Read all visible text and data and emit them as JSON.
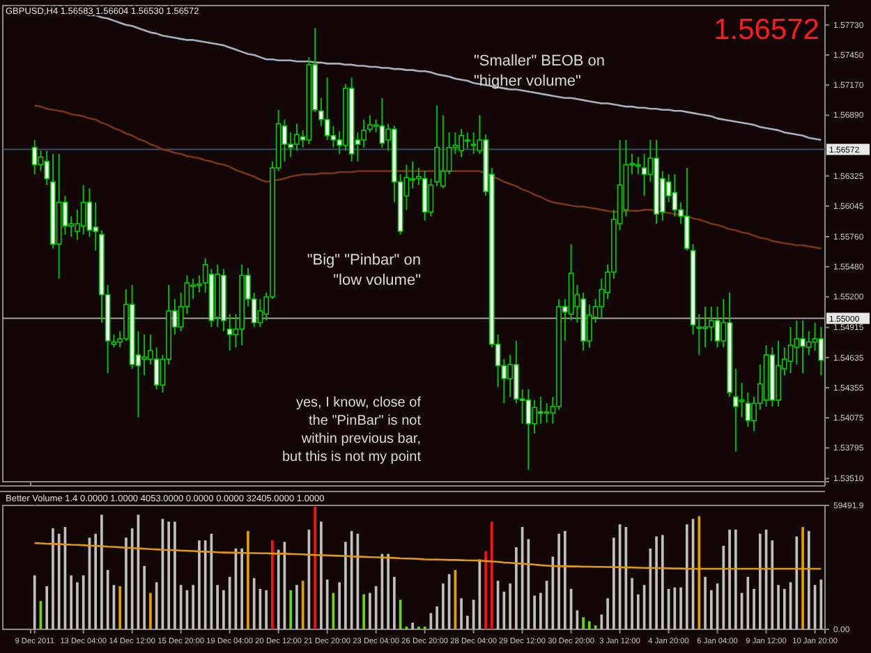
{
  "chart_data": [
    {
      "type": "candlestick",
      "title": "GBPUSD,H4 1.56583 1.56604 1.56530 1.56572",
      "ohlc": [
        [
          1.5659,
          1.5666,
          1.5634,
          1.5643
        ],
        [
          1.5643,
          1.5656,
          1.5637,
          1.565
        ],
        [
          1.5646,
          1.5656,
          1.5624,
          1.563
        ],
        [
          1.5627,
          1.5653,
          1.5565,
          1.5569
        ],
        [
          1.5569,
          1.5653,
          1.5537,
          1.5608
        ],
        [
          1.5608,
          1.5614,
          1.5578,
          1.5586
        ],
        [
          1.5586,
          1.5595,
          1.5576,
          1.5588
        ],
        [
          1.5581,
          1.5601,
          1.5573,
          1.5588
        ],
        [
          1.5586,
          1.5624,
          1.5578,
          1.5608
        ],
        [
          1.5608,
          1.5621,
          1.5576,
          1.5582
        ],
        [
          1.5585,
          1.5608,
          1.5563,
          1.5581
        ],
        [
          1.5578,
          1.5582,
          1.5496,
          1.5522
        ],
        [
          1.5522,
          1.5531,
          1.5449,
          1.5479
        ],
        [
          1.5476,
          1.5485,
          1.5473,
          1.5478
        ],
        [
          1.5478,
          1.5488,
          1.5473,
          1.5481
        ],
        [
          1.5481,
          1.5527,
          1.5479,
          1.5513
        ],
        [
          1.5513,
          1.5531,
          1.5453,
          1.5457
        ],
        [
          1.5466,
          1.5488,
          1.5408,
          1.5456
        ],
        [
          1.5462,
          1.5485,
          1.5447,
          1.5464
        ],
        [
          1.5462,
          1.5485,
          1.5457,
          1.547
        ],
        [
          1.5462,
          1.5473,
          1.5434,
          1.5438
        ],
        [
          1.5438,
          1.5466,
          1.5431,
          1.5462
        ],
        [
          1.5462,
          1.5531,
          1.5457,
          1.5507
        ],
        [
          1.5507,
          1.5518,
          1.5485,
          1.5492
        ],
        [
          1.5492,
          1.5524,
          1.5488,
          1.5511
        ],
        [
          1.5511,
          1.554,
          1.5504,
          1.5533
        ],
        [
          1.5531,
          1.5537,
          1.5518,
          1.5531
        ],
        [
          1.5531,
          1.554,
          1.5524,
          1.5532
        ],
        [
          1.5533,
          1.5556,
          1.5524,
          1.555
        ],
        [
          1.5541,
          1.5546,
          1.5492,
          1.5498
        ],
        [
          1.5501,
          1.555,
          1.5492,
          1.5541
        ],
        [
          1.554,
          1.5546,
          1.5488,
          1.5498
        ],
        [
          1.549,
          1.5504,
          1.547,
          1.5485
        ],
        [
          1.5485,
          1.5504,
          1.5473,
          1.549
        ],
        [
          1.549,
          1.555,
          1.5475,
          1.554
        ],
        [
          1.554,
          1.5547,
          1.5511,
          1.5518
        ],
        [
          1.5518,
          1.5524,
          1.5492,
          1.5496
        ],
        [
          1.5496,
          1.5518,
          1.5492,
          1.5507
        ],
        [
          1.5504,
          1.5524,
          1.5498,
          1.552
        ],
        [
          1.552,
          1.5646,
          1.5518,
          1.564
        ],
        [
          1.564,
          1.5694,
          1.5637,
          1.5681
        ],
        [
          1.5679,
          1.5685,
          1.5646,
          1.5662
        ],
        [
          1.5662,
          1.5673,
          1.565,
          1.5659
        ],
        [
          1.5662,
          1.5681,
          1.5656,
          1.5671
        ],
        [
          1.5669,
          1.5675,
          1.5659,
          1.5666
        ],
        [
          1.5666,
          1.5743,
          1.5662,
          1.5736
        ],
        [
          1.5736,
          1.577,
          1.5692,
          1.5694
        ],
        [
          1.5693,
          1.5705,
          1.5679,
          1.5685
        ],
        [
          1.5685,
          1.5724,
          1.5666,
          1.567
        ],
        [
          1.567,
          1.5679,
          1.5659,
          1.5666
        ],
        [
          1.5666,
          1.5674,
          1.5653,
          1.5661
        ],
        [
          1.5661,
          1.5718,
          1.5656,
          1.5714
        ],
        [
          1.5714,
          1.5724,
          1.5646,
          1.5653
        ],
        [
          1.5666,
          1.5673,
          1.5646,
          1.5662
        ],
        [
          1.5666,
          1.5685,
          1.5659,
          1.5675
        ],
        [
          1.5676,
          1.5689,
          1.5673,
          1.568
        ],
        [
          1.5679,
          1.5685,
          1.5673,
          1.568
        ],
        [
          1.5679,
          1.5705,
          1.5659,
          1.5663
        ],
        [
          1.5666,
          1.5681,
          1.5656,
          1.5676
        ],
        [
          1.5676,
          1.5679,
          1.5608,
          1.5627
        ],
        [
          1.5627,
          1.5634,
          1.5578,
          1.5581
        ],
        [
          1.5614,
          1.5643,
          1.5601,
          1.5631
        ],
        [
          1.563,
          1.5646,
          1.5621,
          1.563
        ],
        [
          1.563,
          1.564,
          1.5624,
          1.5632
        ],
        [
          1.563,
          1.5637,
          1.5591,
          1.5599
        ],
        [
          1.5599,
          1.563,
          1.5595,
          1.5624
        ],
        [
          1.5627,
          1.5698,
          1.5623,
          1.5659
        ],
        [
          1.5623,
          1.5689,
          1.5621,
          1.5637
        ],
        [
          1.5637,
          1.5673,
          1.5634,
          1.5659
        ],
        [
          1.5659,
          1.5673,
          1.5653,
          1.5661
        ],
        [
          1.5656,
          1.5676,
          1.565,
          1.567
        ],
        [
          1.5666,
          1.5673,
          1.5658,
          1.5666
        ],
        [
          1.5662,
          1.5673,
          1.5653,
          1.5662
        ],
        [
          1.5656,
          1.5689,
          1.5653,
          1.5666
        ],
        [
          1.5666,
          1.5671,
          1.5614,
          1.5618
        ],
        [
          1.5634,
          1.564,
          1.5473,
          1.5476
        ],
        [
          1.5476,
          1.5485,
          1.5436,
          1.5456
        ],
        [
          1.5456,
          1.5462,
          1.5421,
          1.5444
        ],
        [
          1.5444,
          1.5466,
          1.5427,
          1.5457
        ],
        [
          1.5457,
          1.5479,
          1.5421,
          1.5425
        ],
        [
          1.5425,
          1.5434,
          1.5402,
          1.5424
        ],
        [
          1.5424,
          1.5434,
          1.5359,
          1.5402
        ],
        [
          1.5402,
          1.5424,
          1.5393,
          1.5417
        ],
        [
          1.5413,
          1.5427,
          1.5402,
          1.5412
        ],
        [
          1.5413,
          1.5421,
          1.5403,
          1.5413
        ],
        [
          1.5412,
          1.5427,
          1.5402,
          1.5418
        ],
        [
          1.5418,
          1.5518,
          1.5415,
          1.5511
        ],
        [
          1.5511,
          1.5518,
          1.5479,
          1.5506
        ],
        [
          1.5504,
          1.5569,
          1.5498,
          1.5542
        ],
        [
          1.5511,
          1.5531,
          1.5496,
          1.5522
        ],
        [
          1.5518,
          1.5524,
          1.547,
          1.5479
        ],
        [
          1.5479,
          1.5513,
          1.5473,
          1.5503
        ],
        [
          1.5501,
          1.5518,
          1.5496,
          1.5511
        ],
        [
          1.5511,
          1.5537,
          1.5501,
          1.5527
        ],
        [
          1.5524,
          1.555,
          1.5518,
          1.5543
        ],
        [
          1.5543,
          1.5601,
          1.5537,
          1.5592
        ],
        [
          1.5588,
          1.5666,
          1.5582,
          1.5624
        ],
        [
          1.5601,
          1.5666,
          1.5595,
          1.5643
        ],
        [
          1.5644,
          1.5653,
          1.5634,
          1.5644
        ],
        [
          1.5643,
          1.565,
          1.5634,
          1.5643
        ],
        [
          1.564,
          1.5653,
          1.5614,
          1.5634
        ],
        [
          1.5634,
          1.5666,
          1.5627,
          1.5649
        ],
        [
          1.5649,
          1.5666,
          1.5588,
          1.5597
        ],
        [
          1.563,
          1.5637,
          1.5591,
          1.5599
        ],
        [
          1.5627,
          1.5634,
          1.5608,
          1.5614
        ],
        [
          1.5617,
          1.5634,
          1.5595,
          1.5601
        ],
        [
          1.5601,
          1.5608,
          1.5588,
          1.5595
        ],
        [
          1.5595,
          1.564,
          1.5563,
          1.5565
        ],
        [
          1.5563,
          1.5569,
          1.5485,
          1.5494
        ],
        [
          1.5492,
          1.5504,
          1.5466,
          1.5492
        ],
        [
          1.5492,
          1.5511,
          1.5473,
          1.5492
        ],
        [
          1.5492,
          1.5511,
          1.5479,
          1.5498
        ],
        [
          1.5498,
          1.5511,
          1.5473,
          1.5479
        ],
        [
          1.5479,
          1.5518,
          1.5473,
          1.5496
        ],
        [
          1.5496,
          1.5524,
          1.5427,
          1.5431
        ],
        [
          1.5427,
          1.5453,
          1.5376,
          1.5418
        ],
        [
          1.5424,
          1.544,
          1.5408,
          1.5424
        ],
        [
          1.5421,
          1.5431,
          1.5399,
          1.5405
        ],
        [
          1.5405,
          1.5427,
          1.5395,
          1.5421
        ],
        [
          1.5421,
          1.5457,
          1.5415,
          1.5439
        ],
        [
          1.5424,
          1.5475,
          1.5418,
          1.5466
        ],
        [
          1.5466,
          1.5473,
          1.5418,
          1.5424
        ],
        [
          1.5424,
          1.5479,
          1.5418,
          1.5456
        ],
        [
          1.5453,
          1.5473,
          1.5447,
          1.5462
        ],
        [
          1.546,
          1.5492,
          1.5449,
          1.5475
        ],
        [
          1.5473,
          1.5498,
          1.5457,
          1.5481
        ],
        [
          1.5481,
          1.5498,
          1.5449,
          1.5474
        ],
        [
          1.5473,
          1.5488,
          1.5466,
          1.5478
        ],
        [
          1.5478,
          1.5496,
          1.547,
          1.5481
        ],
        [
          1.5481,
          1.5492,
          1.5447,
          1.5461
        ]
      ],
      "series": [
        {
          "type": "line",
          "color": "#a8b0c0",
          "values": [
            1.5787,
            1.5786,
            1.5786,
            1.5785,
            1.5785,
            1.5784,
            1.5784,
            1.5783,
            1.5783,
            1.5782,
            1.5782,
            1.578,
            1.5779,
            1.5777,
            1.5775,
            1.5773,
            1.5772,
            1.577,
            1.5768,
            1.5766,
            1.5765,
            1.5763,
            1.5762,
            1.5761,
            1.576,
            1.5759,
            1.5759,
            1.5758,
            1.5757,
            1.5756,
            1.5755,
            1.5754,
            1.5752,
            1.575,
            1.5748,
            1.5746,
            1.5745,
            1.5743,
            1.5741,
            1.5741,
            1.574,
            1.574,
            1.574,
            1.5739,
            1.5739,
            1.5739,
            1.5738,
            1.5738,
            1.5737,
            1.5737,
            1.5737,
            1.5736,
            1.5736,
            1.5735,
            1.5735,
            1.5734,
            1.5734,
            1.5733,
            1.5733,
            1.5732,
            1.5732,
            1.5731,
            1.5731,
            1.573,
            1.573,
            1.5729,
            1.5727,
            1.5726,
            1.5725,
            1.5723,
            1.5722,
            1.5721,
            1.5719,
            1.5718,
            1.5717,
            1.5716,
            1.5715,
            1.5714,
            1.5713,
            1.5713,
            1.5712,
            1.5711,
            1.571,
            1.5709,
            1.5708,
            1.5707,
            1.5706,
            1.5705,
            1.5705,
            1.5704,
            1.5703,
            1.5702,
            1.5701,
            1.57,
            1.57,
            1.5699,
            1.5698,
            1.5697,
            1.5697,
            1.5696,
            1.5696,
            1.5695,
            1.5695,
            1.5694,
            1.5694,
            1.5693,
            1.5693,
            1.5692,
            1.5691,
            1.569,
            1.5689,
            1.5688,
            1.5686,
            1.5685,
            1.5684,
            1.5683,
            1.5682,
            1.5681,
            1.568,
            1.5678,
            1.5677,
            1.5676,
            1.5675,
            1.5673,
            1.5672,
            1.5671,
            1.567,
            1.5668,
            1.5667,
            1.5666
          ]
        },
        {
          "type": "line",
          "color": "#7a3418",
          "values": [
            1.5698,
            1.5697,
            1.5695,
            1.5694,
            1.5693,
            1.5692,
            1.569,
            1.5689,
            1.5688,
            1.5686,
            1.5685,
            1.5682,
            1.568,
            1.5677,
            1.5675,
            1.5672,
            1.567,
            1.5667,
            1.5665,
            1.5662,
            1.566,
            1.5657,
            1.5656,
            1.5654,
            1.5653,
            1.5651,
            1.565,
            1.5649,
            1.5647,
            1.5646,
            1.5644,
            1.5643,
            1.5641,
            1.5638,
            1.5636,
            1.5634,
            1.5632,
            1.5629,
            1.5627,
            1.5628,
            1.5629,
            1.563,
            1.5632,
            1.5633,
            1.5634,
            1.5634,
            1.5634,
            1.5635,
            1.5635,
            1.5635,
            1.5636,
            1.5636,
            1.5636,
            1.5637,
            1.5637,
            1.5637,
            1.5637,
            1.5637,
            1.5637,
            1.5637,
            1.5637,
            1.5637,
            1.5637,
            1.5637,
            1.5637,
            1.5637,
            1.5637,
            1.5637,
            1.5637,
            1.5637,
            1.5637,
            1.5637,
            1.5637,
            1.5637,
            1.5635,
            1.5632,
            1.563,
            1.5627,
            1.5625,
            1.5623,
            1.562,
            1.5618,
            1.5615,
            1.5613,
            1.561,
            1.5608,
            1.5607,
            1.5606,
            1.5605,
            1.5604,
            1.5604,
            1.5603,
            1.5602,
            1.5601,
            1.56,
            1.5599,
            1.5599,
            1.56,
            1.56,
            1.56,
            1.5601,
            1.5601,
            1.56,
            1.5599,
            1.5598,
            1.5597,
            1.5596,
            1.5595,
            1.5593,
            1.5592,
            1.559,
            1.5588,
            1.5587,
            1.5585,
            1.5583,
            1.5582,
            1.558,
            1.5579,
            1.5577,
            1.5575,
            1.5574,
            1.5572,
            1.5571,
            1.557,
            1.5569,
            1.5568,
            1.5568,
            1.5567,
            1.5566,
            1.5565
          ]
        }
      ],
      "ylim": [
        1.5348,
        1.5791
      ],
      "yticks": [
        {
          "value": 1.5773,
          "label": "1.57730"
        },
        {
          "value": 1.5745,
          "label": "1.57450"
        },
        {
          "value": 1.5717,
          "label": "1.57170"
        },
        {
          "value": 1.5689,
          "label": "1.56890"
        },
        {
          "value": 1.56325,
          "label": "1.56325"
        },
        {
          "value": 1.56045,
          "label": "1.56045"
        },
        {
          "value": 1.5576,
          "label": "1.55760"
        },
        {
          "value": 1.5548,
          "label": "1.55480"
        },
        {
          "value": 1.552,
          "label": "1.55200"
        },
        {
          "value": 1.54915,
          "label": "1.54915"
        },
        {
          "value": 1.54635,
          "label": "1.54635"
        },
        {
          "value": 1.54355,
          "label": "1.54355"
        },
        {
          "value": 1.54075,
          "label": "1.54075"
        },
        {
          "value": 1.53795,
          "label": "1.53795"
        },
        {
          "value": 1.5351,
          "label": "1.53510"
        }
      ],
      "ref_lines": [
        {
          "axis": "y",
          "value": 1.56572,
          "label": "1.56572",
          "color": "#3c4c6c"
        },
        {
          "axis": "y",
          "value": 1.55,
          "label": "1.55000",
          "color": "#a0a0a0"
        }
      ],
      "annotations": [
        "1.56572",
        "\"Smaller\" BEOB on\n\"higher volume\"",
        "\"Big\" \"Pinbar\" on\n\"low volume\"",
        "yes, I know, close of\nthe \"PinBar\" is not\nwithin previous bar,\nbut this is not my point"
      ]
    },
    {
      "type": "bar",
      "title": "Better Volume 1.4 0.0000 1.0000 4053.0000 0.0000 0.0000 32405.0000 1.0000",
      "categories": [
        "9 Dec 2011",
        null,
        null,
        null,
        null,
        null,
        null,
        null,
        "13 Dec 04:00",
        null,
        null,
        null,
        null,
        null,
        null,
        null,
        "14 Dec 12:00",
        null,
        null,
        null,
        null,
        null,
        null,
        null,
        "15 Dec 20:00",
        null,
        null,
        null,
        null,
        null,
        null,
        null,
        "19 Dec 04:00",
        null,
        null,
        null,
        null,
        null,
        null,
        null,
        "20 Dec 12:00",
        null,
        null,
        null,
        null,
        null,
        null,
        null,
        "21 Dec 20:00",
        null,
        null,
        null,
        null,
        null,
        null,
        null,
        "23 Dec 04:00",
        null,
        null,
        null,
        null,
        null,
        null,
        null,
        "26 Dec 20:00",
        null,
        null,
        null,
        null,
        null,
        null,
        null,
        "28 Dec 04:00",
        null,
        null,
        null,
        null,
        null,
        null,
        null,
        "29 Dec 12:00",
        null,
        null,
        null,
        null,
        null,
        null,
        null,
        "30 Dec 20:00",
        null,
        null,
        null,
        null,
        null,
        null,
        null,
        "3 Jan 12:00",
        null,
        null,
        null,
        null,
        null,
        null,
        null,
        "4 Jan 20:00",
        null,
        null,
        null,
        null,
        null,
        null,
        null,
        "6 Jan 04:00",
        null,
        null,
        null,
        null,
        null,
        null,
        null,
        "9 Jan 12:00",
        null,
        null,
        null,
        null,
        null,
        null,
        null,
        "10 Jan 20:00",
        null
      ],
      "values": [
        25900,
        13600,
        20700,
        48500,
        45900,
        49100,
        25900,
        22600,
        25900,
        44000,
        45900,
        55000,
        28500,
        21300,
        20700,
        44000,
        48500,
        55000,
        30400,
        17500,
        22600,
        53000,
        51700,
        51700,
        21300,
        18800,
        21300,
        42700,
        42700,
        45900,
        21300,
        18800,
        25200,
        38800,
        38800,
        47200,
        24600,
        19400,
        18800,
        42700,
        38200,
        42000,
        18800,
        21300,
        23300,
        47900,
        58900,
        51700,
        23900,
        17500,
        22600,
        42000,
        47200,
        45900,
        16800,
        17500,
        20700,
        36200,
        36200,
        25200,
        14200,
        1300,
        3200,
        1300,
        1300,
        7800,
        11000,
        22000,
        26500,
        28500,
        14900,
        6500,
        14200,
        33600,
        37500,
        51700,
        23300,
        18100,
        22000,
        39400,
        49100,
        43300,
        16200,
        17500,
        23300,
        34900,
        45900,
        47200,
        19400,
        9100,
        5800,
        3900,
        1900,
        7100,
        14900,
        44000,
        50400,
        49100,
        24600,
        16800,
        21300,
        38800,
        44600,
        45300,
        19400,
        20100,
        20100,
        50400,
        53000,
        54300,
        25200,
        18800,
        22000,
        40100,
        47900,
        47900,
        17500,
        25200,
        19400,
        45900,
        47900,
        42700,
        21300,
        19400,
        22600,
        44600,
        49100,
        47200,
        21300,
        23900
      ],
      "colors": [
        "#c0c0c0",
        "#66dd00",
        "#c0c0c0",
        "#c0c0c0",
        "#c0c0c0",
        "#c0c0c0",
        "#c0c0c0",
        "#c0c0c0",
        "#c0c0c0",
        "#c0c0c0",
        "#c0c0c0",
        "#c0c0c0",
        "#c0c0c0",
        "#c0c0c0",
        "#e0a000",
        "#c0c0c0",
        "#c0c0c0",
        "#c0c0c0",
        "#c0c0c0",
        "#e0a000",
        "#c0c0c0",
        "#c0c0c0",
        "#c0c0c0",
        "#c0c0c0",
        "#c0c0c0",
        "#c0c0c0",
        "#c0c0c0",
        "#c0c0c0",
        "#c0c0c0",
        "#c0c0c0",
        "#c0c0c0",
        "#c0c0c0",
        "#c0c0c0",
        "#c0c0c0",
        "#c0c0c0",
        "#e0a000",
        "#c0c0c0",
        "#c0c0c0",
        "#c0c0c0",
        "#ff1010",
        "#c0c0c0",
        "#c0c0c0",
        "#66dd00",
        "#c0c0c0",
        "#e0a000",
        "#c0c0c0",
        "#ff1010",
        "#c0c0c0",
        "#c0c0c0",
        "#66dd00",
        "#c0c0c0",
        "#c0c0c0",
        "#c0c0c0",
        "#c0c0c0",
        "#66dd00",
        "#c0c0c0",
        "#c0c0c0",
        "#c0c0c0",
        "#c0c0c0",
        "#c0c0c0",
        "#66dd00",
        "#66dd00",
        "#c0c0c0",
        "#66dd00",
        "#66dd00",
        "#c0c0c0",
        "#c0c0c0",
        "#c0c0c0",
        "#c0c0c0",
        "#e0a000",
        "#c0c0c0",
        "#c0c0c0",
        "#c0c0c0",
        "#c0c0c0",
        "#ff1010",
        "#ff1010",
        "#c0c0c0",
        "#c0c0c0",
        "#c0c0c0",
        "#c0c0c0",
        "#c0c0c0",
        "#c0c0c0",
        "#c0c0c0",
        "#c0c0c0",
        "#c0c0c0",
        "#c0c0c0",
        "#c0c0c0",
        "#c0c0c0",
        "#c0c0c0",
        "#c0c0c0",
        "#66dd00",
        "#66dd00",
        "#66dd00",
        "#c0c0c0",
        "#c0c0c0",
        "#c0c0c0",
        "#c0c0c0",
        "#c0c0c0",
        "#c0c0c0",
        "#c0c0c0",
        "#c0c0c0",
        "#c0c0c0",
        "#c0c0c0",
        "#c0c0c0",
        "#c0c0c0",
        "#c0c0c0",
        "#c0c0c0",
        "#c0c0c0",
        "#c0c0c0",
        "#e0a000",
        "#c0c0c0",
        "#c0c0c0",
        "#c0c0c0",
        "#c0c0c0",
        "#c0c0c0",
        "#c0c0c0",
        "#c0c0c0",
        "#c0c0c0",
        "#c0c0c0",
        "#c0c0c0",
        "#c0c0c0",
        "#c0c0c0",
        "#c0c0c0",
        "#c0c0c0",
        "#c0c0c0",
        "#c0c0c0",
        "#e0a000",
        "#c0c0c0",
        "#c0c0c0",
        "#c0c0c0"
      ],
      "series": [
        {
          "type": "line",
          "color": "#e09a10",
          "values": [
            41400,
            41300,
            41100,
            41000,
            40900,
            40800,
            40600,
            40500,
            40400,
            40200,
            40100,
            39900,
            39700,
            39600,
            39400,
            39200,
            39000,
            38900,
            38700,
            38500,
            38400,
            38200,
            38100,
            38000,
            37800,
            37700,
            37600,
            37400,
            37300,
            37200,
            37000,
            36900,
            36800,
            36800,
            36700,
            36600,
            36600,
            36500,
            36500,
            36400,
            36300,
            36300,
            36200,
            36100,
            36000,
            35800,
            35700,
            35600,
            35500,
            35400,
            35300,
            35200,
            35000,
            34900,
            34800,
            34700,
            34600,
            34500,
            34400,
            34300,
            34100,
            34000,
            33900,
            33800,
            33600,
            33500,
            33500,
            33400,
            33300,
            33300,
            33200,
            33100,
            33100,
            33000,
            32800,
            32600,
            32400,
            32100,
            31900,
            31700,
            31500,
            31300,
            31100,
            30800,
            30600,
            30400,
            30300,
            30300,
            30200,
            30200,
            30100,
            30100,
            30000,
            30000,
            29900,
            29900,
            29800,
            29700,
            29700,
            29600,
            29500,
            29500,
            29400,
            29400,
            29300,
            29200,
            29200,
            29100,
            29100,
            29100,
            29100,
            29100,
            29100,
            29100,
            29100,
            29100,
            29100,
            29100,
            29100,
            29100,
            29100,
            29100,
            29100,
            29100,
            29100,
            29100,
            29100,
            29100,
            29100,
            29100
          ]
        }
      ],
      "ylim": [
        0,
        59491.9
      ],
      "yticks": [
        {
          "value": 0,
          "label": "0.00"
        },
        {
          "value": 59491.9,
          "label": "59491.9"
        }
      ]
    }
  ]
}
